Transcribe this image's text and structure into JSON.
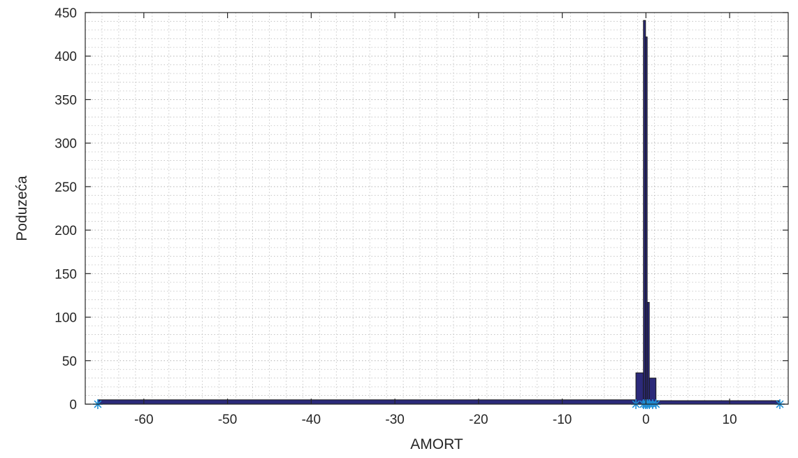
{
  "chart_data": {
    "type": "bar",
    "title": "",
    "xlabel": "AMORT",
    "ylabel": "Poduzeća",
    "xlim": [
      -67,
      17
    ],
    "ylim": [
      0,
      450
    ],
    "xticks": [
      -60,
      -50,
      -40,
      -30,
      -20,
      -10,
      0,
      10
    ],
    "yticks": [
      0,
      50,
      100,
      150,
      200,
      250,
      300,
      350,
      400,
      450
    ],
    "grid": true,
    "minor_grid": true,
    "bar_color": "#2c2a7a",
    "bar_edge_color": "#1a1a1a",
    "marker_color": "#1f8fd6",
    "bins": [
      {
        "start": -65.5,
        "end": -1.2,
        "count": 5
      },
      {
        "start": -1.2,
        "end": -0.3,
        "count": 36
      },
      {
        "start": -0.3,
        "end": -0.05,
        "count": 441
      },
      {
        "start": -0.05,
        "end": 0.15,
        "count": 422
      },
      {
        "start": 0.15,
        "end": 0.4,
        "count": 117
      },
      {
        "start": 0.4,
        "end": 1.2,
        "count": 30
      },
      {
        "start": 1.2,
        "end": 16.0,
        "count": 4
      }
    ],
    "edge_markers": [
      -65.5,
      -1.2,
      -0.3,
      -0.05,
      0.15,
      0.4,
      0.8,
      1.2,
      16.0
    ]
  }
}
